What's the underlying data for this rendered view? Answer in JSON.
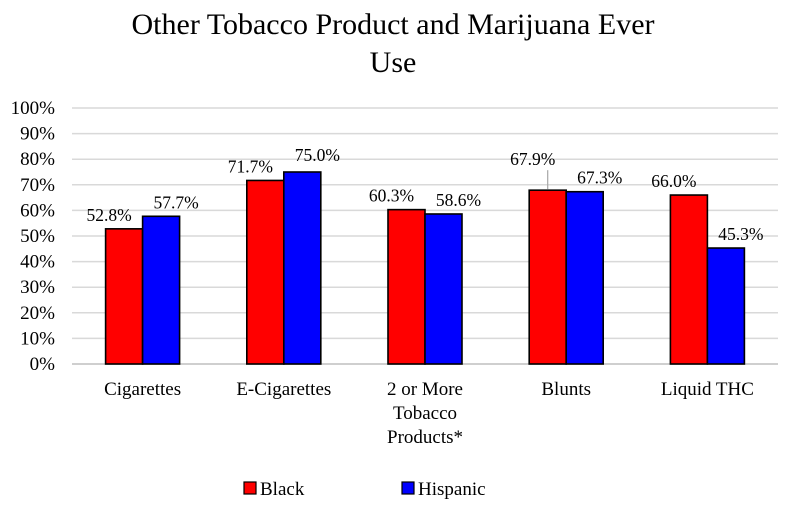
{
  "chart_data": {
    "type": "bar",
    "title_lines": [
      "Other Tobacco Product and Marijuana Ever",
      "Use"
    ],
    "categories": [
      [
        "Cigarettes"
      ],
      [
        "E-Cigarettes"
      ],
      [
        "2 or More",
        "Tobacco",
        "Products*"
      ],
      [
        "Blunts"
      ],
      [
        "Liquid THC"
      ]
    ],
    "series": [
      {
        "name": "Black",
        "color": "#ff0000",
        "values": [
          52.8,
          71.7,
          60.3,
          67.9,
          66.0
        ],
        "labels": [
          "52.8%",
          "71.7%",
          "60.3%",
          "67.9%",
          "66.0%"
        ]
      },
      {
        "name": "Hispanic",
        "color": "#0000ff",
        "values": [
          57.7,
          75.0,
          58.6,
          67.3,
          45.3
        ],
        "labels": [
          "57.7%",
          "75.0%",
          "58.6%",
          "67.3%",
          "45.3%"
        ]
      }
    ],
    "yticks": [
      "0%",
      "10%",
      "20%",
      "30%",
      "40%",
      "50%",
      "60%",
      "70%",
      "80%",
      "90%",
      "100%"
    ],
    "ylim": [
      0,
      100
    ],
    "grid": true,
    "legend_position": "bottom",
    "xlabel": "",
    "ylabel": ""
  }
}
